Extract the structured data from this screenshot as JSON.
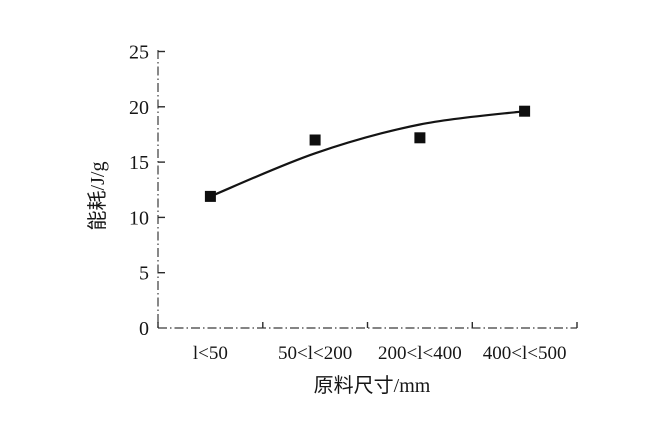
{
  "figure": {
    "background": "#ffffff",
    "ink_color": "#141414",
    "axis_color": "#3a3a3a"
  },
  "chart_data": {
    "type": "scatter",
    "title": "",
    "xlabel": "原料尺寸/mm",
    "ylabel": "能耗/J/g",
    "categories": [
      "l<50",
      "50<l<200",
      "200<l<400",
      "400<l<500"
    ],
    "values": [
      11.9,
      17.0,
      17.2,
      19.6
    ],
    "series": [
      {
        "name": "measured energy consumption",
        "marker": "filled-square",
        "values": [
          11.9,
          17.0,
          17.2,
          19.6
        ]
      },
      {
        "name": "fitted trend curve",
        "marker": "none",
        "values": [
          11.9,
          15.8,
          18.4,
          19.6
        ]
      }
    ],
    "ylim": [
      0,
      25
    ],
    "y_ticks": [
      0,
      5,
      10,
      15,
      20,
      25
    ],
    "x_tick_style": "category boundaries, ticks pointing up",
    "y_tick_style": "ticks pointing right (inside plot)",
    "axis_line_style": "dash-dot (scanned look)",
    "grid": false,
    "legend": "none"
  }
}
